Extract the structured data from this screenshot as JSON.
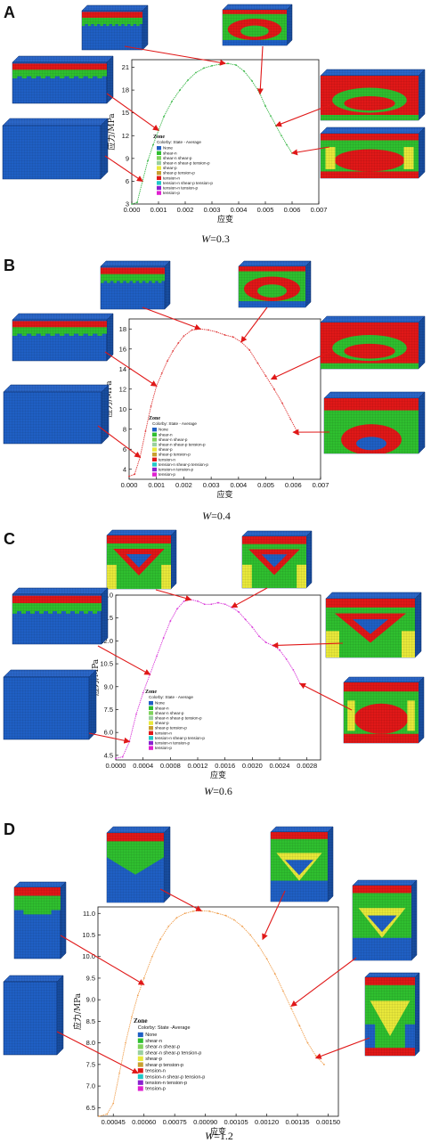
{
  "colors": {
    "none": "#1f5fc4",
    "shear_n": "#2fbf2f",
    "shear_p": "#e8e83a",
    "tension_n": "#e01818",
    "arrow": "#e01818"
  },
  "legend": {
    "title": "Zone",
    "subtitle_short": "Colorby: State - Average",
    "subtitle_long": "Colorby: State -Average",
    "items": [
      {
        "label": "None",
        "color": "#1f5fc4"
      },
      {
        "label": "shear-n",
        "color": "#2fbf2f"
      },
      {
        "label": "shear-n shear-p",
        "color": "#7fd35a"
      },
      {
        "label": "shear-n shear-p tension-p",
        "color": "#9ad0a0"
      },
      {
        "label": "shear-p",
        "color": "#e8e83a"
      },
      {
        "label": "shear-p tension-p",
        "color": "#c8a030"
      },
      {
        "label": "tension-n",
        "color": "#e01818"
      },
      {
        "label": "tension-n shear-p tension-p",
        "color": "#20c8c8"
      },
      {
        "label": "tension-n tension-p",
        "color": "#8a20d0"
      },
      {
        "label": "tension-p",
        "color": "#e020d0"
      }
    ]
  },
  "chart_data": [
    {
      "panel": "A",
      "type": "line",
      "caption_var": "W",
      "caption_value": "=0.3",
      "xlabel": "应变",
      "ylabel": "应力/MPa",
      "color": "#3cb84a",
      "xlim": [
        0,
        0.007
      ],
      "ylim": [
        3,
        22
      ],
      "xticks": [
        "0.000",
        "0.001",
        "0.002",
        "0.003",
        "0.004",
        "0.005",
        "0.006",
        "0.007"
      ],
      "xtick_values": [
        0,
        0.001,
        0.002,
        0.003,
        0.004,
        0.005,
        0.006,
        0.007
      ],
      "yticks": [
        "3",
        "6",
        "9",
        "12",
        "15",
        "18",
        "21"
      ],
      "ytick_values": [
        3,
        6,
        9,
        12,
        15,
        18,
        21
      ],
      "x": [
        0.0,
        0.0002,
        0.0004,
        0.0006,
        0.0008,
        0.001,
        0.0012,
        0.0015,
        0.0018,
        0.0021,
        0.0024,
        0.0027,
        0.003,
        0.0033,
        0.0036,
        0.0039,
        0.0042,
        0.0045,
        0.0048,
        0.005,
        0.0052,
        0.0054,
        0.0056,
        0.0058,
        0.006
      ],
      "y": [
        3.0,
        3.2,
        6.0,
        8.7,
        10.8,
        12.7,
        14.5,
        16.5,
        18.0,
        19.3,
        20.3,
        20.9,
        21.2,
        21.4,
        21.5,
        21.3,
        20.5,
        19.2,
        17.5,
        15.9,
        14.6,
        13.3,
        12.0,
        10.8,
        9.7
      ]
    },
    {
      "panel": "B",
      "type": "line",
      "caption_var": "W",
      "caption_value": "=0.4",
      "xlabel": "应变",
      "ylabel": "应力/MPa",
      "color": "#e03a3a",
      "xlim": [
        0,
        0.007
      ],
      "ylim": [
        3,
        19
      ],
      "xticks": [
        "0.000",
        "0.001",
        "0.002",
        "0.003",
        "0.004",
        "0.005",
        "0.006",
        "0.007"
      ],
      "xtick_values": [
        0,
        0.001,
        0.002,
        0.003,
        0.004,
        0.005,
        0.006,
        0.007
      ],
      "yticks": [
        "4",
        "6",
        "8",
        "10",
        "12",
        "14",
        "16",
        "18"
      ],
      "ytick_values": [
        4,
        6,
        8,
        10,
        12,
        14,
        16,
        18
      ],
      "x": [
        0.0,
        0.0002,
        0.0004,
        0.0006,
        0.0008,
        0.001,
        0.0012,
        0.0014,
        0.0016,
        0.0018,
        0.002,
        0.0023,
        0.0026,
        0.0029,
        0.0032,
        0.0035,
        0.0038,
        0.0041,
        0.0044,
        0.0047,
        0.005,
        0.0053,
        0.0056,
        0.0059,
        0.0062
      ],
      "y": [
        3.3,
        3.5,
        5.2,
        7.8,
        10.3,
        12.3,
        13.6,
        14.8,
        15.8,
        16.6,
        17.3,
        17.9,
        18.0,
        17.9,
        17.7,
        17.4,
        17.2,
        16.7,
        15.9,
        14.6,
        13.3,
        12.0,
        10.6,
        9.0,
        7.5
      ]
    },
    {
      "panel": "C",
      "type": "line",
      "caption_var": "W",
      "caption_value": "=0.6",
      "xlabel": "应变",
      "ylabel": "应力/MPa",
      "color": "#d93ad9",
      "xlim": [
        0,
        0.003
      ],
      "ylim": [
        4.2,
        15
      ],
      "xticks": [
        "0.0000",
        "0.0004",
        "0.0008",
        "0.0012",
        "0.0016",
        "0.0020",
        "0.0024",
        "0.0028"
      ],
      "xtick_values": [
        0,
        0.0004,
        0.0008,
        0.0012,
        0.0016,
        0.002,
        0.0024,
        0.0028
      ],
      "yticks": [
        "4.5",
        "6.0",
        "7.5",
        "9.0",
        "10.5",
        "12.0",
        "13.5",
        "15.0"
      ],
      "ytick_values": [
        4.5,
        6.0,
        7.5,
        9.0,
        10.5,
        12.0,
        13.5,
        15.0
      ],
      "x": [
        0.0,
        0.0001,
        0.0002,
        0.0003,
        0.0004,
        0.0005,
        0.0006,
        0.0007,
        0.0008,
        0.0009,
        0.001,
        0.0011,
        0.0012,
        0.0013,
        0.0014,
        0.0015,
        0.0016,
        0.0017,
        0.0018,
        0.0019,
        0.002,
        0.0021,
        0.0022,
        0.0023,
        0.0024,
        0.0025,
        0.0026,
        0.0027
      ],
      "y": [
        4.3,
        4.4,
        5.4,
        7.2,
        8.6,
        9.8,
        11.0,
        12.2,
        13.3,
        14.1,
        14.6,
        14.7,
        14.6,
        14.4,
        14.4,
        14.5,
        14.4,
        14.2,
        13.9,
        13.4,
        12.9,
        12.3,
        11.9,
        11.7,
        11.4,
        10.8,
        10.1,
        9.2
      ]
    },
    {
      "panel": "D",
      "type": "line",
      "caption_var": "W",
      "caption_value": "=1.2",
      "xlabel": "应变",
      "ylabel": "应力/MPa",
      "color": "#f0a050",
      "xlim": [
        0.000375,
        0.00155
      ],
      "ylim": [
        6.3,
        11.15
      ],
      "xticks": [
        "0.00045",
        "0.00060",
        "0.00075",
        "0.00090",
        "0.00105",
        "0.00120",
        "0.00135",
        "0.00150"
      ],
      "xtick_values": [
        0.00045,
        0.0006,
        0.00075,
        0.0009,
        0.00105,
        0.0012,
        0.00135,
        0.0015
      ],
      "yticks": [
        "6.5",
        "7.0",
        "7.5",
        "8.0",
        "8.5",
        "9.0",
        "9.5",
        "10.0",
        "10.5",
        "11.0"
      ],
      "ytick_values": [
        6.5,
        7.0,
        7.5,
        8.0,
        8.5,
        9.0,
        9.5,
        10.0,
        10.5,
        11.0
      ],
      "x": [
        0.00038,
        0.00042,
        0.00045,
        0.00048,
        0.00051,
        0.00054,
        0.00057,
        0.0006,
        0.00064,
        0.00068,
        0.00072,
        0.00076,
        0.0008,
        0.00084,
        0.00088,
        0.00092,
        0.00096,
        0.001,
        0.00104,
        0.00108,
        0.00112,
        0.00116,
        0.0012,
        0.00124,
        0.00128,
        0.00132,
        0.00136,
        0.0014,
        0.00144,
        0.00148
      ],
      "y": [
        6.3,
        6.35,
        6.6,
        7.3,
        8.0,
        8.6,
        9.1,
        9.5,
        10.0,
        10.4,
        10.7,
        10.9,
        11.0,
        11.05,
        11.06,
        11.05,
        11.0,
        10.95,
        10.85,
        10.7,
        10.5,
        10.25,
        9.95,
        9.6,
        9.2,
        8.8,
        8.4,
        8.0,
        7.7,
        7.5
      ]
    }
  ]
}
